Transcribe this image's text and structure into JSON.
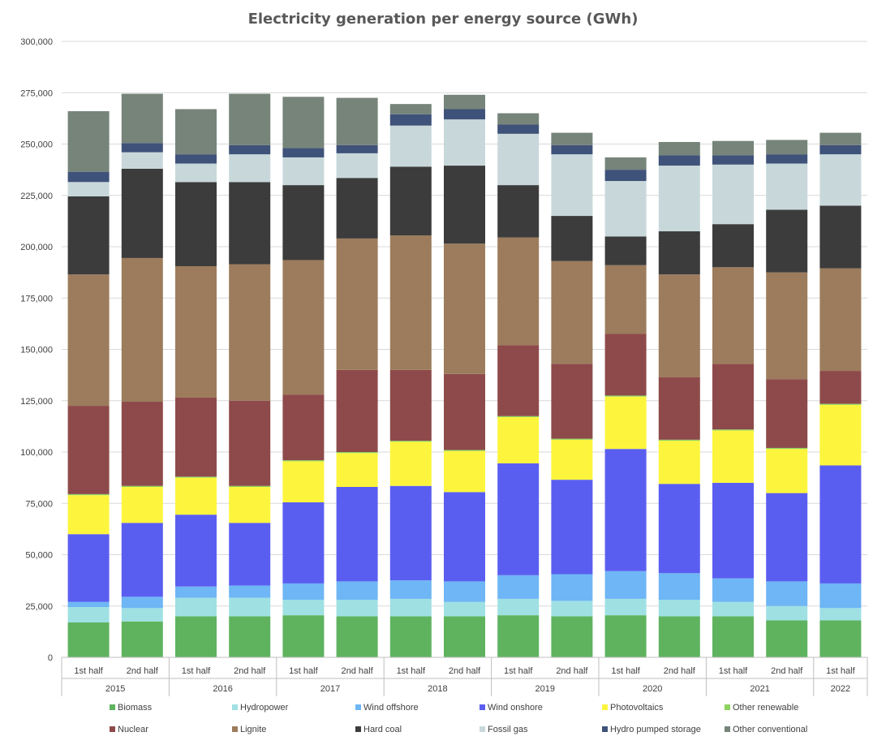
{
  "chart_data": {
    "type": "bar",
    "stacked": true,
    "title": "Electricity generation per energy source (GWh)",
    "xlabel": "",
    "ylabel": "",
    "ylim": [
      0,
      300000
    ],
    "yticks": [
      0,
      25000,
      50000,
      75000,
      100000,
      125000,
      150000,
      175000,
      200000,
      225000,
      250000,
      275000,
      300000
    ],
    "ytick_labels": [
      "0",
      "25,000",
      "50,000",
      "75,000",
      "100,000",
      "125,000",
      "150,000",
      "175,000",
      "200,000",
      "225,000",
      "250,000",
      "275,000",
      "300,000"
    ],
    "grid": "horizontal",
    "legend_position": "bottom",
    "categories": [
      "1st half",
      "2nd half",
      "1st half",
      "2nd half",
      "1st half",
      "2nd half",
      "1st half",
      "2nd half",
      "1st half",
      "2nd half",
      "1st half",
      "2nd half",
      "1st half",
      "2nd half",
      "1st half"
    ],
    "groups": [
      {
        "label": "2015",
        "span": 2
      },
      {
        "label": "2016",
        "span": 2
      },
      {
        "label": "2017",
        "span": 2
      },
      {
        "label": "2018",
        "span": 2
      },
      {
        "label": "2019",
        "span": 2
      },
      {
        "label": "2020",
        "span": 2
      },
      {
        "label": "2021",
        "span": 2
      },
      {
        "label": "2022",
        "span": 1
      }
    ],
    "series": [
      {
        "name": "Biomass",
        "color": "#5fb35f",
        "values": [
          17000,
          17500,
          20000,
          20000,
          20500,
          20000,
          20000,
          20000,
          20500,
          20000,
          20500,
          20000,
          20000,
          18000,
          18000
        ]
      },
      {
        "name": "Hydropower",
        "color": "#9fe0e3",
        "values": [
          7500,
          6500,
          9000,
          9000,
          7500,
          8000,
          8500,
          7000,
          8000,
          7500,
          8000,
          8000,
          7000,
          7000,
          6000
        ]
      },
      {
        "name": "Wind offshore",
        "color": "#6eb6f5",
        "values": [
          2500,
          5500,
          5500,
          6000,
          8000,
          9000,
          9000,
          10000,
          11500,
          13000,
          13500,
          13000,
          11500,
          12000,
          12000
        ]
      },
      {
        "name": "Wind onshore",
        "color": "#5a5ef0",
        "values": [
          33000,
          36000,
          35000,
          30500,
          39500,
          46000,
          46000,
          43500,
          54500,
          46000,
          59500,
          43500,
          46500,
          43000,
          57500
        ]
      },
      {
        "name": "Photovoltaics",
        "color": "#fdf53d",
        "values": [
          19000,
          17500,
          18000,
          17500,
          20000,
          16500,
          21500,
          20000,
          22500,
          19500,
          25500,
          21000,
          25500,
          21500,
          29500
        ]
      },
      {
        "name": "Other renewable",
        "color": "#8dd35f",
        "values": [
          500,
          500,
          500,
          500,
          500,
          500,
          500,
          500,
          500,
          500,
          500,
          500,
          500,
          500,
          500
        ]
      },
      {
        "name": "Nuclear",
        "color": "#8e4a4a",
        "values": [
          43000,
          41000,
          38500,
          41500,
          32000,
          40000,
          34500,
          37000,
          34500,
          36500,
          30000,
          30500,
          32000,
          33500,
          16000
        ]
      },
      {
        "name": "Lignite",
        "color": "#9c7c5c",
        "values": [
          64000,
          70000,
          64000,
          66500,
          65500,
          64000,
          65500,
          63500,
          52500,
          50000,
          33500,
          50000,
          47000,
          52000,
          50000
        ]
      },
      {
        "name": "Hard coal",
        "color": "#3c3c3c",
        "values": [
          38000,
          43500,
          41000,
          40000,
          36500,
          29500,
          33500,
          38000,
          25500,
          22000,
          14000,
          21000,
          21000,
          30500,
          30500
        ]
      },
      {
        "name": "Fossil gas",
        "color": "#c8d8da",
        "values": [
          7000,
          8000,
          9000,
          13500,
          13500,
          12000,
          20000,
          22500,
          25000,
          30000,
          27000,
          32000,
          29000,
          22500,
          25000
        ]
      },
      {
        "name": "Hydro pumped storage",
        "color": "#3f5279",
        "values": [
          5000,
          4500,
          4500,
          4500,
          4500,
          4000,
          5500,
          5000,
          4500,
          4500,
          5500,
          5000,
          4500,
          4500,
          4500
        ]
      },
      {
        "name": "Other conventional",
        "color": "#76847a",
        "values": [
          29500,
          24000,
          22000,
          25000,
          25000,
          23000,
          5000,
          7000,
          5500,
          6000,
          6000,
          6500,
          7000,
          7000,
          6000
        ]
      }
    ]
  }
}
